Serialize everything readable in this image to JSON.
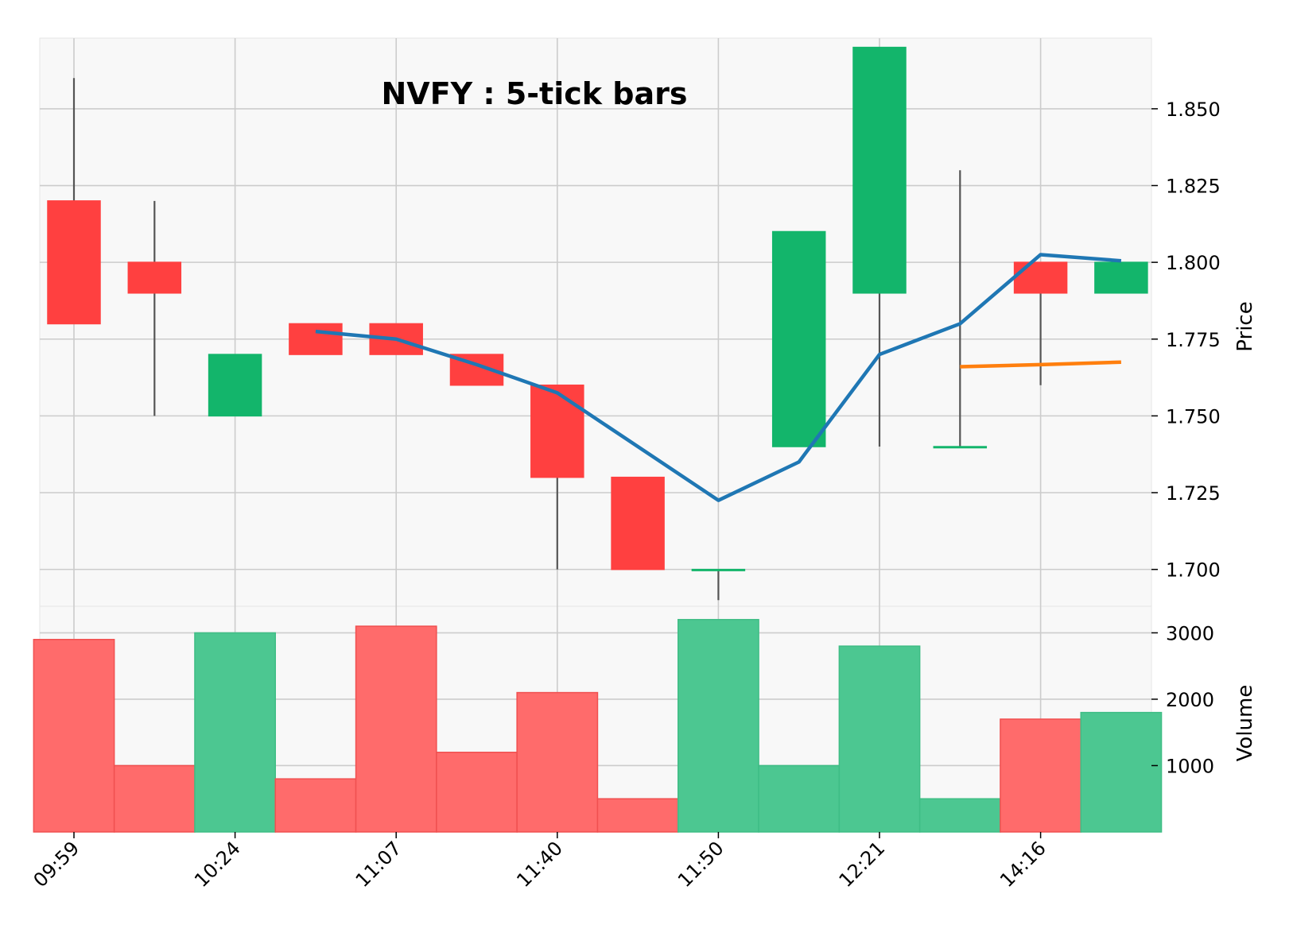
{
  "chart_data": {
    "type": "candlestick",
    "title": "NVFY : 5-tick bars",
    "ylabel_price": "Price",
    "ylabel_volume": "Volume",
    "x_tick_labels": [
      {
        "index": 0,
        "label": "09:59"
      },
      {
        "index": 2,
        "label": "10:24"
      },
      {
        "index": 4,
        "label": "11:07"
      },
      {
        "index": 6,
        "label": "11:40"
      },
      {
        "index": 8,
        "label": "11:50"
      },
      {
        "index": 10,
        "label": "12:21"
      },
      {
        "index": 12,
        "label": "14:16"
      }
    ],
    "price_ylim": [
      1.688,
      1.873
    ],
    "price_ticks": [
      "1.700",
      "1.725",
      "1.750",
      "1.775",
      "1.800",
      "1.825",
      "1.850"
    ],
    "volume_ylim": [
      0,
      3400
    ],
    "volume_ticks": [
      "1000",
      "2000",
      "3000"
    ],
    "candles": [
      {
        "open": 1.82,
        "high": 1.86,
        "low": 1.78,
        "close": 1.78,
        "volume": 2900
      },
      {
        "open": 1.8,
        "high": 1.82,
        "low": 1.75,
        "close": 1.79,
        "volume": 1000
      },
      {
        "open": 1.75,
        "high": 1.77,
        "low": 1.75,
        "close": 1.77,
        "volume": 3000
      },
      {
        "open": 1.78,
        "high": 1.78,
        "low": 1.77,
        "close": 1.77,
        "volume": 800
      },
      {
        "open": 1.78,
        "high": 1.78,
        "low": 1.77,
        "close": 1.77,
        "volume": 3100
      },
      {
        "open": 1.77,
        "high": 1.77,
        "low": 1.76,
        "close": 1.76,
        "volume": 1200
      },
      {
        "open": 1.76,
        "high": 1.76,
        "low": 1.7,
        "close": 1.73,
        "volume": 2100
      },
      {
        "open": 1.73,
        "high": 1.73,
        "low": 1.7,
        "close": 1.7,
        "volume": 500
      },
      {
        "open": 1.7,
        "high": 1.7,
        "low": 1.69,
        "close": 1.7,
        "volume": 3200
      },
      {
        "open": 1.74,
        "high": 1.81,
        "low": 1.74,
        "close": 1.81,
        "volume": 1000
      },
      {
        "open": 1.79,
        "high": 1.87,
        "low": 1.74,
        "close": 1.87,
        "volume": 2800
      },
      {
        "open": 1.74,
        "high": 1.83,
        "low": 1.74,
        "close": 1.74,
        "volume": 500
      },
      {
        "open": 1.8,
        "high": 1.8,
        "low": 1.76,
        "close": 1.79,
        "volume": 1700
      },
      {
        "open": 1.79,
        "high": 1.8,
        "low": 1.79,
        "close": 1.8,
        "volume": 1800
      }
    ],
    "series": [
      {
        "color": "#1f77b4",
        "start_index": 3,
        "values": [
          1.7775,
          1.775,
          1.7667,
          1.7575,
          1.74,
          1.7225,
          1.735,
          1.77,
          1.78,
          1.8025,
          1.8005
        ]
      },
      {
        "color": "#ff7f0e",
        "start_index": 11,
        "values": [
          1.766,
          1.7667,
          1.7675
        ]
      }
    ],
    "colors": {
      "up": "#13b56b",
      "down": "#ff4040",
      "volume_up": "#4cc791",
      "volume_down": "#ff6b6b",
      "wick": "#555555",
      "plot_bg": "#f8f8f8",
      "grid": "#cccccc"
    },
    "grid": true
  }
}
